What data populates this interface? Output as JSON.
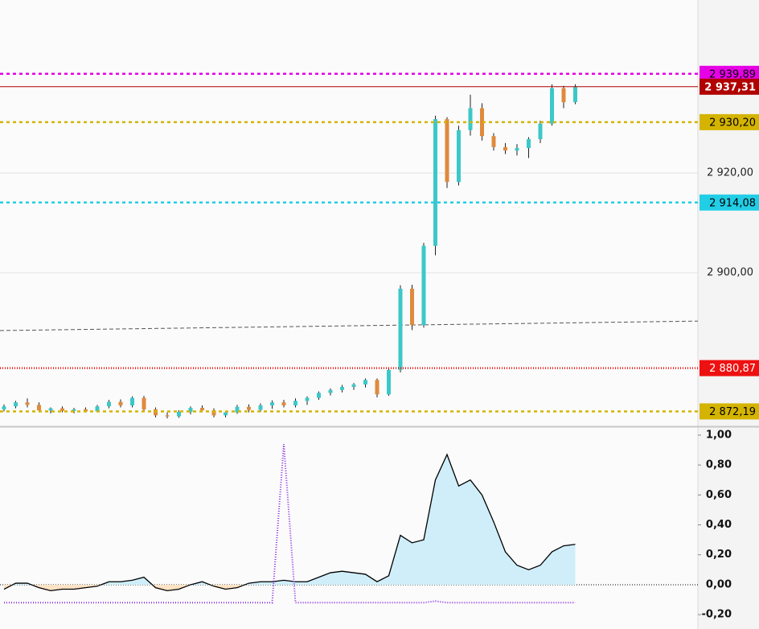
{
  "chart_data": [
    {
      "type": "candlestick",
      "ylim": [
        2869.2,
        2954.7
      ],
      "yticks": [
        {
          "value": 2900,
          "label": "2 900,00"
        },
        {
          "value": 2920,
          "label": "2 920,00"
        }
      ],
      "grid": true,
      "up_color": "#3cc8c8",
      "down_color": "#e08a3c",
      "series": [
        {
          "open": [
            2872.6,
            2873.2,
            2874.0,
            2873.5,
            2872.4,
            2872.8,
            2872.3,
            2872.6,
            2872.2,
            2873.2,
            2874.1,
            2873.4,
            2874.9,
            2872.6,
            2871.4,
            2871.2,
            2872.1,
            2872.9,
            2872.4,
            2871.4,
            2872.0,
            2873.1,
            2872.5,
            2873.4,
            2874.0,
            2873.4,
            2874.3,
            2874.9,
            2875.9,
            2876.5,
            2877.1,
            2877.6,
            2878.5,
            2875.6,
            2880.5,
            2896.8,
            2889.5,
            2905.4,
            2930.8,
            2918.2,
            2928.6,
            2933.0,
            2927.4,
            2925.2,
            2924.5,
            2925.0,
            2926.8,
            2929.9,
            2937.0,
            2934.2
          ],
          "high": [
            2873.6,
            2874.3,
            2874.8,
            2874.0,
            2873.0,
            2873.2,
            2872.9,
            2873.0,
            2873.5,
            2874.5,
            2874.6,
            2875.2,
            2875.3,
            2873.0,
            2872.0,
            2872.4,
            2873.2,
            2873.4,
            2872.8,
            2872.3,
            2873.5,
            2873.6,
            2873.8,
            2874.4,
            2874.5,
            2874.8,
            2875.2,
            2876.2,
            2876.8,
            2877.5,
            2877.9,
            2878.8,
            2878.8,
            2881.0,
            2897.5,
            2897.6,
            2906.0,
            2931.5,
            2931.2,
            2929.5,
            2935.7,
            2934.0,
            2928.0,
            2926.0,
            2925.8,
            2927.2,
            2930.5,
            2937.8,
            2937.5,
            2937.8
          ],
          "low": [
            2872.2,
            2872.8,
            2873.0,
            2872.0,
            2871.8,
            2872.0,
            2871.8,
            2872.0,
            2872.0,
            2872.8,
            2873.0,
            2873.0,
            2872.2,
            2871.0,
            2870.8,
            2870.9,
            2871.6,
            2872.0,
            2871.0,
            2871.0,
            2871.7,
            2872.0,
            2872.1,
            2872.7,
            2873.0,
            2873.0,
            2873.5,
            2874.5,
            2875.4,
            2876.0,
            2876.5,
            2877.0,
            2875.0,
            2875.3,
            2880.0,
            2888.5,
            2889.0,
            2903.5,
            2917.0,
            2917.5,
            2927.5,
            2926.5,
            2924.5,
            2923.8,
            2923.5,
            2923.0,
            2926.0,
            2929.5,
            2933.0,
            2933.8
          ],
          "close": [
            2873.2,
            2874.0,
            2873.5,
            2872.4,
            2872.8,
            2872.3,
            2872.6,
            2872.2,
            2873.2,
            2874.1,
            2873.4,
            2874.9,
            2872.6,
            2871.4,
            2871.2,
            2872.1,
            2872.9,
            2872.4,
            2871.4,
            2872.0,
            2873.1,
            2872.5,
            2873.4,
            2874.0,
            2873.4,
            2874.3,
            2874.9,
            2875.9,
            2876.5,
            2877.1,
            2877.6,
            2878.5,
            2875.6,
            2880.5,
            2896.8,
            2889.5,
            2905.4,
            2930.8,
            2918.2,
            2928.6,
            2933.0,
            2927.4,
            2925.2,
            2924.5,
            2925.0,
            2926.8,
            2929.9,
            2937.0,
            2934.2,
            2937.31
          ]
        }
      ],
      "trend_line": [
        2888.4,
        2890.3
      ],
      "levels": [
        {
          "value": 2939.89,
          "label": "2 939,89",
          "color": "#e600e6",
          "text_color": "#000000",
          "style": "dashed"
        },
        {
          "value": 2937.31,
          "label": "2 937,31",
          "color": "#b00000",
          "text_color": "#ffffff",
          "style": "solid"
        },
        {
          "value": 2930.2,
          "label": "2 930,20",
          "color": "#d4b400",
          "text_color": "#000000",
          "style": "dashed"
        },
        {
          "value": 2914.08,
          "label": "2 914,08",
          "color": "#22cde6",
          "text_color": "#000000",
          "style": "dashed"
        },
        {
          "value": 2880.87,
          "label": "2 880,87",
          "color": "#ee1111",
          "text_color": "#ffffff",
          "style": "dotted"
        },
        {
          "value": 2872.19,
          "label": "2 872,19",
          "color": "#d4b400",
          "text_color": "#000000",
          "style": "dashed"
        }
      ]
    },
    {
      "type": "area",
      "ylim": [
        -0.296,
        1.048
      ],
      "yticks": [
        {
          "value": -0.2,
          "label": "-0,20"
        },
        {
          "value": 0,
          "label": "0,00"
        },
        {
          "value": 0.2,
          "label": "0,20"
        },
        {
          "value": 0.4,
          "label": "0,40"
        },
        {
          "value": 0.6,
          "label": "0,60"
        },
        {
          "value": 0.8,
          "label": "0,80"
        },
        {
          "value": 1,
          "label": "1,00"
        }
      ],
      "series": [
        {
          "color": "#000000",
          "fill": "#cfeefa",
          "negative_fill": "#fde3c4",
          "values": [
            -0.03,
            0.01,
            0.01,
            -0.02,
            -0.04,
            -0.03,
            -0.03,
            -0.02,
            -0.01,
            0.02,
            0.02,
            0.03,
            0.05,
            -0.02,
            -0.04,
            -0.03,
            0.0,
            0.02,
            -0.01,
            -0.03,
            -0.02,
            0.01,
            0.02,
            0.02,
            0.03,
            0.02,
            0.02,
            0.05,
            0.08,
            0.09,
            0.08,
            0.07,
            0.02,
            0.06,
            0.33,
            0.28,
            0.3,
            0.7,
            0.87,
            0.66,
            0.7,
            0.6,
            0.42,
            0.22,
            0.13,
            0.1,
            0.13,
            0.22,
            0.26,
            0.27
          ]
        },
        {
          "color": "#8a2be2",
          "style": "dotted",
          "values": [
            -0.12,
            -0.12,
            -0.12,
            -0.12,
            -0.12,
            -0.12,
            -0.12,
            -0.12,
            -0.12,
            -0.12,
            -0.12,
            -0.12,
            -0.12,
            -0.12,
            -0.12,
            -0.12,
            -0.12,
            -0.12,
            -0.12,
            -0.12,
            -0.12,
            -0.12,
            -0.12,
            -0.12,
            0.94,
            -0.12,
            -0.12,
            -0.12,
            -0.12,
            -0.12,
            -0.12,
            -0.12,
            -0.12,
            -0.12,
            -0.12,
            -0.12,
            -0.12,
            -0.11,
            -0.12,
            -0.12,
            -0.12,
            -0.12,
            -0.12,
            -0.12,
            -0.12,
            -0.12,
            -0.12,
            -0.12,
            -0.12,
            -0.12
          ]
        }
      ]
    }
  ]
}
